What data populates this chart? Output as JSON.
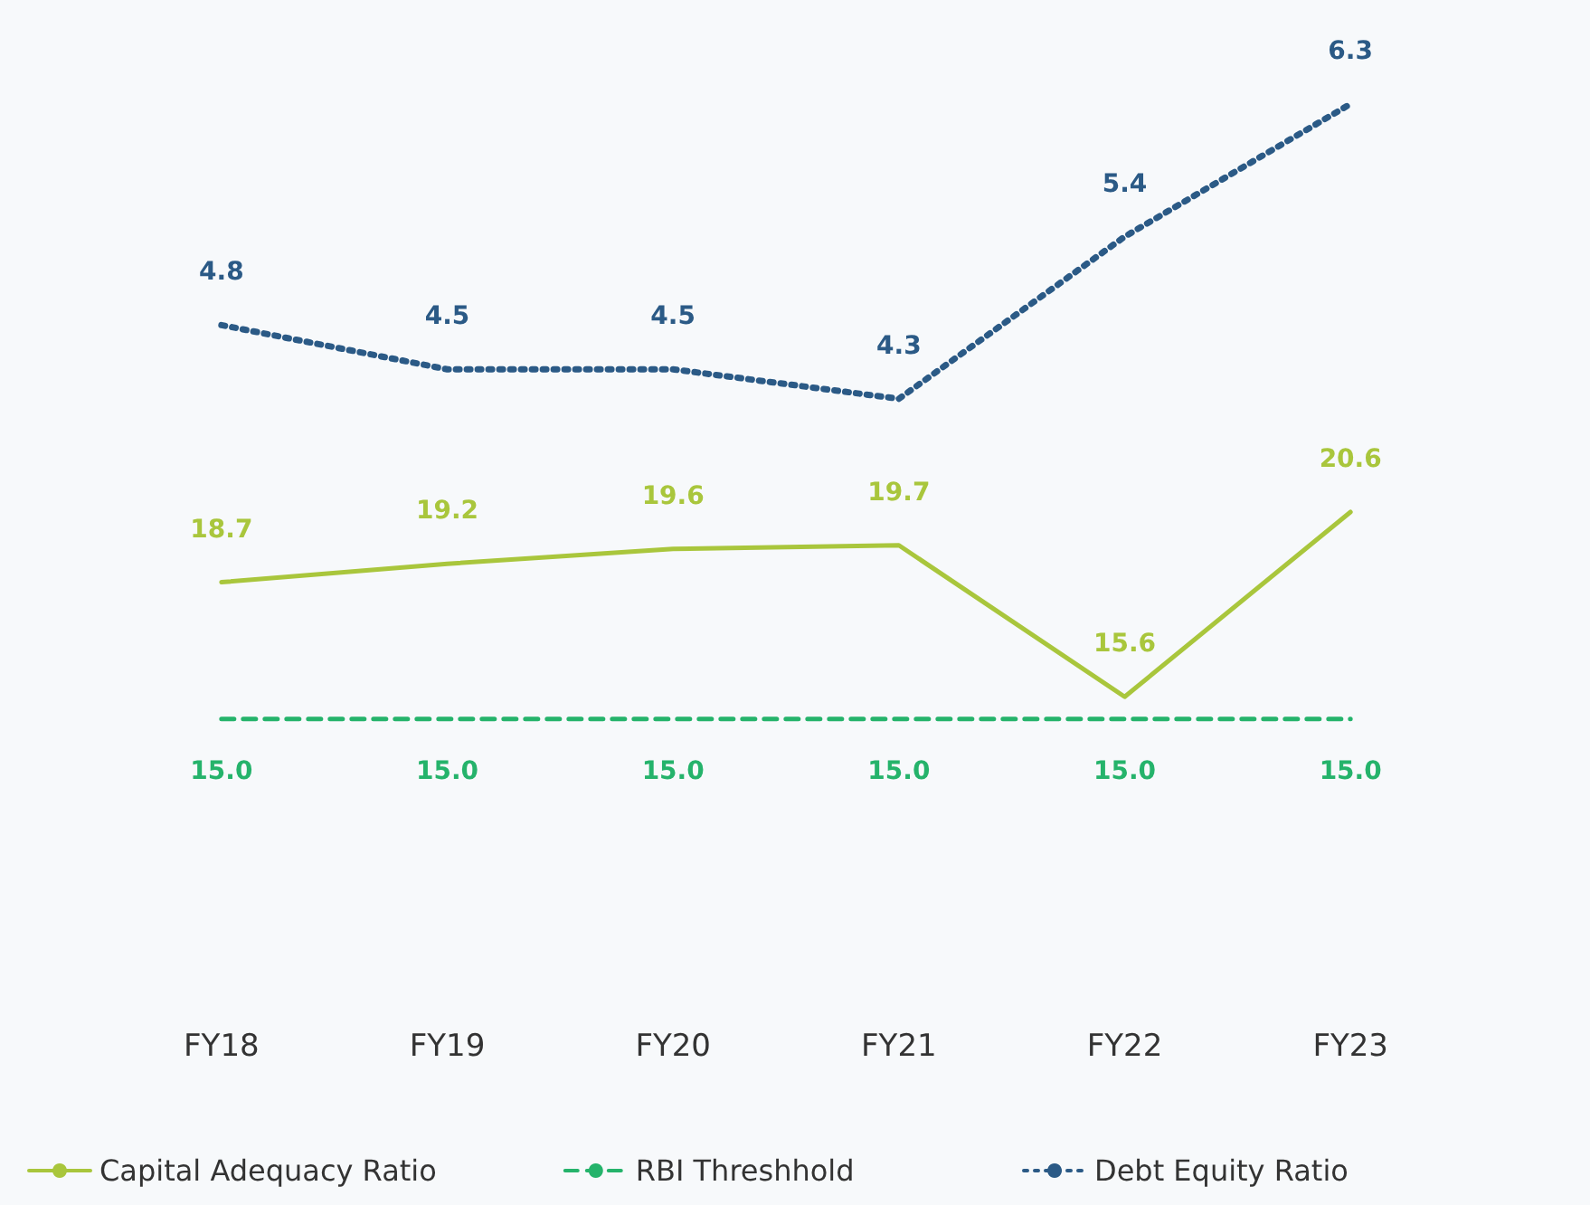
{
  "chart_data": [
    {
      "type": "line",
      "categories": [
        "FY18",
        "FY19",
        "FY20",
        "FY21",
        "FY22",
        "FY23"
      ],
      "series": [
        {
          "name": "Capital Adequacy Ratio",
          "color": "#a9c63c",
          "values": [
            18.7,
            19.2,
            19.6,
            19.7,
            15.6,
            20.6
          ],
          "line_style": "solid"
        },
        {
          "name": "RBI Threshhold",
          "color": "#25b36b",
          "values": [
            15.0,
            15.0,
            15.0,
            15.0,
            15.0,
            15.0
          ],
          "value_labels": [
            "15.0",
            "15.0",
            "15.0",
            "15.0",
            "15.0",
            "15.0"
          ],
          "line_style": "dashed"
        }
      ],
      "tick_labels": "x",
      "data_labels": true,
      "marker": "none",
      "grid": false,
      "legend": "bottom"
    },
    {
      "type": "line",
      "categories": [
        null,
        null,
        null,
        null,
        null,
        null
      ],
      "series": [
        {
          "name": "Debt Equity Ratio",
          "color": "#2b5a86",
          "values": [
            4.8,
            4.5,
            4.5,
            4.3,
            5.4,
            6.3
          ],
          "line_style": "dotted"
        }
      ],
      "tick_labels": false,
      "data_labels": true,
      "marker": "none",
      "grid": false,
      "legend": "bottom"
    }
  ]
}
